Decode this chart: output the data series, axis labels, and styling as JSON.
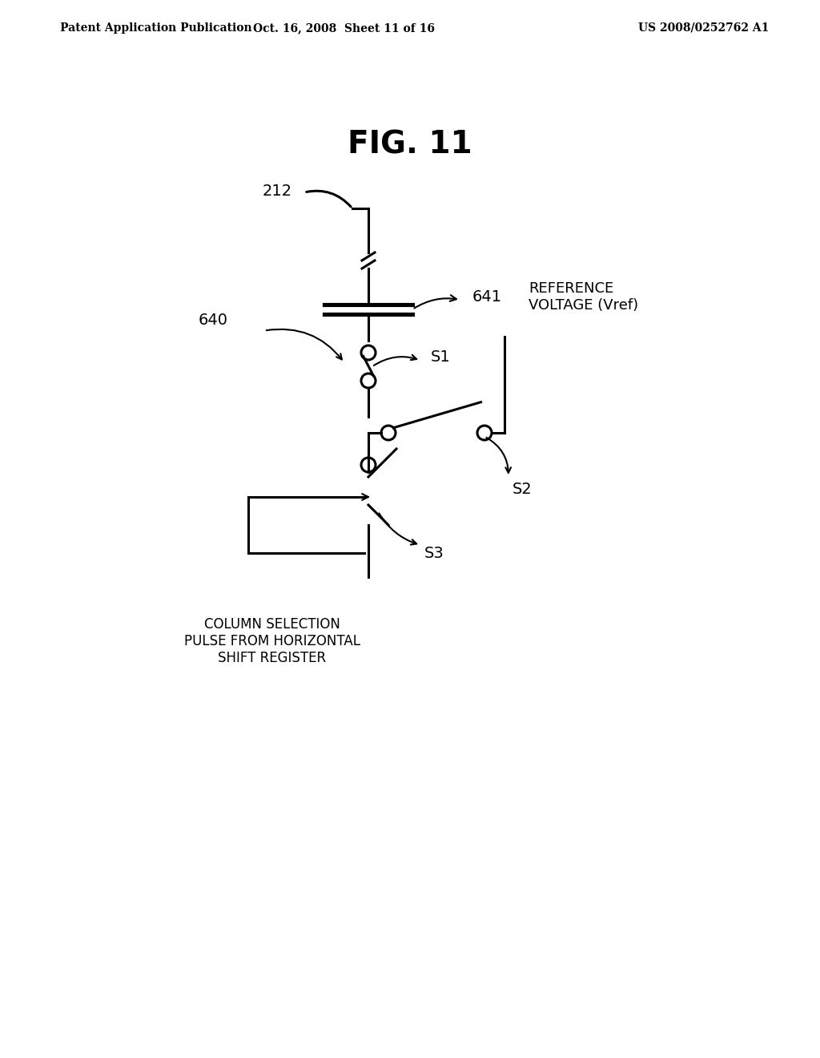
{
  "title": "FIG. 11",
  "header_left": "Patent Application Publication",
  "header_center": "Oct. 16, 2008  Sheet 11 of 16",
  "header_right": "US 2008/0252762 A1",
  "background": "#ffffff",
  "label_212": "212",
  "label_641": "641",
  "label_640": "640",
  "label_S1": "S1",
  "label_S2": "S2",
  "label_S3": "S3",
  "label_ref_voltage": "REFERENCE\nVOLTAGE (Vref)",
  "label_col_sel": "COLUMN SELECTION\nPULSE FROM HORIZONTAL\nSHIFT REGISTER"
}
